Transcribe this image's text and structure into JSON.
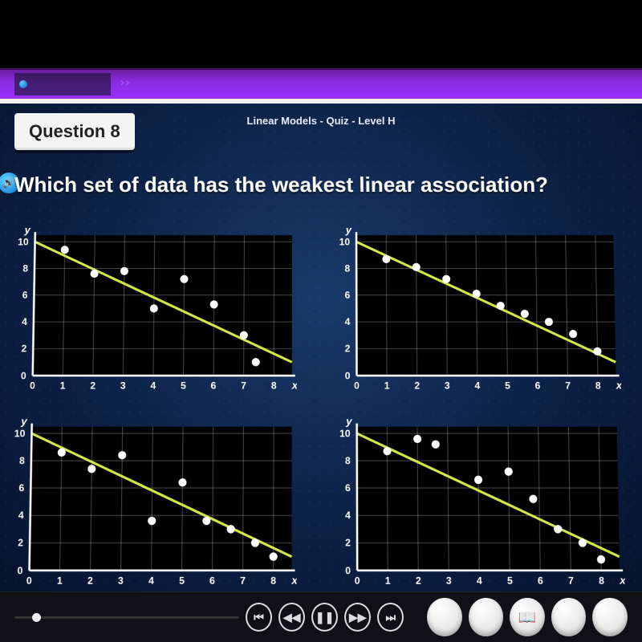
{
  "breadcrumb": "Linear Models - Quiz - Level H",
  "question_badge": "Question 8",
  "prompt": "Which set of data has the weakest linear association?",
  "axes": {
    "x_label": "x",
    "y_label": "y",
    "x_ticks": [
      0,
      1,
      2,
      3,
      4,
      5,
      6,
      7,
      8
    ],
    "y_ticks": [
      0,
      2,
      4,
      6,
      8,
      10
    ],
    "xlim": [
      0,
      8.6
    ],
    "ylim": [
      0,
      10.5
    ],
    "plot_bg": "#000000",
    "grid_color": "rgba(200,200,200,0.35)",
    "axis_color": "#ffffff",
    "tick_fontsize": 12,
    "label_fontsize": 13
  },
  "trendline": {
    "color": "#d6e84a",
    "width": 3,
    "p1": [
      0,
      10
    ],
    "p2": [
      8.6,
      1
    ]
  },
  "point_style": {
    "color": "#ffffff",
    "radius": 5
  },
  "charts": [
    {
      "id": "A",
      "points": [
        [
          1,
          9.4
        ],
        [
          2,
          7.6
        ],
        [
          3,
          7.8
        ],
        [
          4,
          5.0
        ],
        [
          5,
          7.2
        ],
        [
          6,
          5.3
        ],
        [
          7,
          3.0
        ],
        [
          7.4,
          1.0
        ]
      ]
    },
    {
      "id": "B",
      "points": [
        [
          1,
          8.7
        ],
        [
          2,
          8.1
        ],
        [
          3,
          7.2
        ],
        [
          4,
          6.1
        ],
        [
          4.8,
          5.2
        ],
        [
          5.6,
          4.6
        ],
        [
          6.4,
          4.0
        ],
        [
          7.2,
          3.1
        ],
        [
          8,
          1.8
        ]
      ]
    },
    {
      "id": "C",
      "points": [
        [
          1,
          8.6
        ],
        [
          2,
          7.4
        ],
        [
          3,
          8.4
        ],
        [
          4,
          3.6
        ],
        [
          5,
          6.4
        ],
        [
          5.8,
          3.6
        ],
        [
          6.6,
          3.0
        ],
        [
          7.4,
          2.0
        ],
        [
          8,
          1.0
        ]
      ]
    },
    {
      "id": "D",
      "points": [
        [
          1,
          8.7
        ],
        [
          2,
          9.6
        ],
        [
          2.6,
          9.2
        ],
        [
          4,
          6.6
        ],
        [
          5,
          7.2
        ],
        [
          5.8,
          5.2
        ],
        [
          6.6,
          3.0
        ],
        [
          7.4,
          2.0
        ],
        [
          8,
          0.8
        ]
      ]
    }
  ],
  "controls": {
    "prev_chapter": "⏮",
    "rewind": "◀◀",
    "play_pause": "❚❚",
    "forward": "▶▶",
    "next_chapter": "⏭"
  }
}
